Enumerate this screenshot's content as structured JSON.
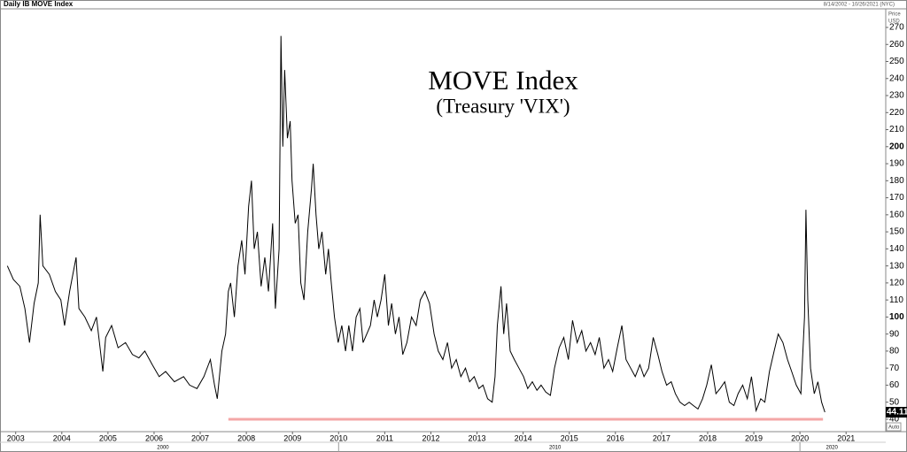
{
  "chart_data": {
    "type": "line",
    "title": "Daily IB MOVE Index",
    "date_range": "8/14/2002 - 10/26/2021 (NYC)",
    "annotation": [
      "MOVE Index",
      "(Treasury 'VIX')"
    ],
    "y_axis_label": [
      "Price",
      "USD"
    ],
    "scale_mode": "Auto",
    "last_value_label": "44.11",
    "color": "#000000",
    "x": [
      2002.82,
      2002.95,
      2003.09,
      2003.2,
      2003.3,
      2003.4,
      2003.49,
      2003.53,
      2003.59,
      2003.73,
      2003.86,
      2003.98,
      2004.06,
      2004.17,
      2004.31,
      2004.37,
      2004.5,
      2004.64,
      2004.75,
      2004.89,
      2004.95,
      2005.08,
      2005.22,
      2005.38,
      2005.53,
      2005.67,
      2005.8,
      2005.96,
      2006.11,
      2006.25,
      2006.44,
      2006.64,
      2006.77,
      2006.93,
      2007.08,
      2007.22,
      2007.31,
      2007.37,
      2007.47,
      2007.55,
      2007.61,
      2007.66,
      2007.74,
      2007.82,
      2007.9,
      2007.97,
      2008.05,
      2008.11,
      2008.17,
      2008.24,
      2008.32,
      2008.4,
      2008.48,
      2008.57,
      2008.63,
      2008.71,
      2008.75,
      2008.79,
      2008.83,
      2008.89,
      2008.95,
      2008.99,
      2009.06,
      2009.12,
      2009.18,
      2009.25,
      2009.33,
      2009.41,
      2009.45,
      2009.51,
      2009.57,
      2009.64,
      2009.72,
      2009.78,
      2009.84,
      2009.91,
      2009.99,
      2010.07,
      2010.15,
      2010.22,
      2010.3,
      2010.38,
      2010.46,
      2010.53,
      2010.61,
      2010.69,
      2010.77,
      2010.84,
      2010.92,
      2011.0,
      2011.08,
      2011.15,
      2011.23,
      2011.31,
      2011.39,
      2011.48,
      2011.58,
      2011.68,
      2011.77,
      2011.87,
      2011.97,
      2012.07,
      2012.16,
      2012.26,
      2012.36,
      2012.45,
      2012.55,
      2012.65,
      2012.75,
      2012.84,
      2012.94,
      2013.04,
      2013.13,
      2013.23,
      2013.33,
      2013.39,
      2013.44,
      2013.52,
      2013.58,
      2013.64,
      2013.72,
      2013.81,
      2013.91,
      2014.01,
      2014.1,
      2014.2,
      2014.3,
      2014.39,
      2014.49,
      2014.59,
      2014.68,
      2014.78,
      2014.88,
      2014.98,
      2015.07,
      2015.17,
      2015.27,
      2015.36,
      2015.46,
      2015.56,
      2015.65,
      2015.75,
      2015.85,
      2015.94,
      2016.04,
      2016.14,
      2016.23,
      2016.33,
      2016.43,
      2016.53,
      2016.62,
      2016.72,
      2016.82,
      2016.92,
      2017.01,
      2017.11,
      2017.21,
      2017.3,
      2017.4,
      2017.5,
      2017.6,
      2017.69,
      2017.79,
      2017.89,
      2017.98,
      2018.08,
      2018.18,
      2018.27,
      2018.37,
      2018.47,
      2018.57,
      2018.66,
      2018.76,
      2018.86,
      2018.95,
      2019.05,
      2019.15,
      2019.24,
      2019.34,
      2019.44,
      2019.53,
      2019.63,
      2019.73,
      2019.82,
      2019.92,
      2020.02,
      2020.1,
      2020.13,
      2020.17,
      2020.23,
      2020.31,
      2020.39,
      2020.47,
      2020.54
    ],
    "values": [
      130,
      122,
      118,
      105,
      85,
      108,
      120,
      160,
      130,
      125,
      115,
      110,
      95,
      115,
      135,
      105,
      100,
      92,
      100,
      68,
      88,
      95,
      82,
      85,
      78,
      76,
      80,
      72,
      65,
      68,
      62,
      65,
      60,
      58,
      65,
      75,
      60,
      52,
      80,
      90,
      115,
      120,
      100,
      130,
      145,
      125,
      165,
      180,
      140,
      150,
      118,
      135,
      115,
      155,
      105,
      140,
      265,
      200,
      245,
      205,
      215,
      180,
      155,
      160,
      120,
      110,
      150,
      175,
      190,
      160,
      140,
      150,
      125,
      140,
      120,
      100,
      85,
      95,
      80,
      95,
      80,
      100,
      105,
      85,
      90,
      95,
      110,
      100,
      110,
      125,
      95,
      108,
      90,
      100,
      78,
      85,
      100,
      95,
      110,
      115,
      108,
      90,
      80,
      75,
      85,
      70,
      75,
      65,
      70,
      62,
      65,
      58,
      60,
      52,
      50,
      65,
      95,
      118,
      90,
      108,
      80,
      75,
      70,
      65,
      58,
      62,
      57,
      60,
      56,
      54,
      70,
      82,
      88,
      75,
      98,
      85,
      92,
      80,
      85,
      78,
      88,
      70,
      75,
      68,
      82,
      95,
      75,
      70,
      65,
      72,
      65,
      70,
      88,
      78,
      68,
      60,
      62,
      55,
      50,
      48,
      50,
      48,
      46,
      52,
      60,
      72,
      55,
      58,
      62,
      50,
      48,
      55,
      60,
      52,
      65,
      45,
      52,
      50,
      68,
      80,
      90,
      85,
      75,
      68,
      60,
      55,
      100,
      163,
      110,
      70,
      55,
      62,
      50,
      44.11
    ],
    "reference_line": {
      "y": 40,
      "x": [
        2007.61,
        2020.5
      ],
      "color": "#f4a7a7"
    },
    "xlim": [
      2002.66,
      2021.86
    ],
    "xticks": [
      2003,
      2004,
      2005,
      2006,
      2007,
      2008,
      2009,
      2010,
      2011,
      2012,
      2013,
      2014,
      2015,
      2016,
      2017,
      2018,
      2019,
      2020,
      2021
    ],
    "decade_labels": [
      "2000",
      "2010",
      "2020"
    ],
    "ylim": [
      32.7,
      280.9
    ],
    "yticks": [
      40,
      50,
      60,
      70,
      80,
      90,
      100,
      110,
      120,
      130,
      140,
      150,
      160,
      170,
      180,
      190,
      200,
      210,
      220,
      230,
      240,
      250,
      260,
      270
    ]
  }
}
